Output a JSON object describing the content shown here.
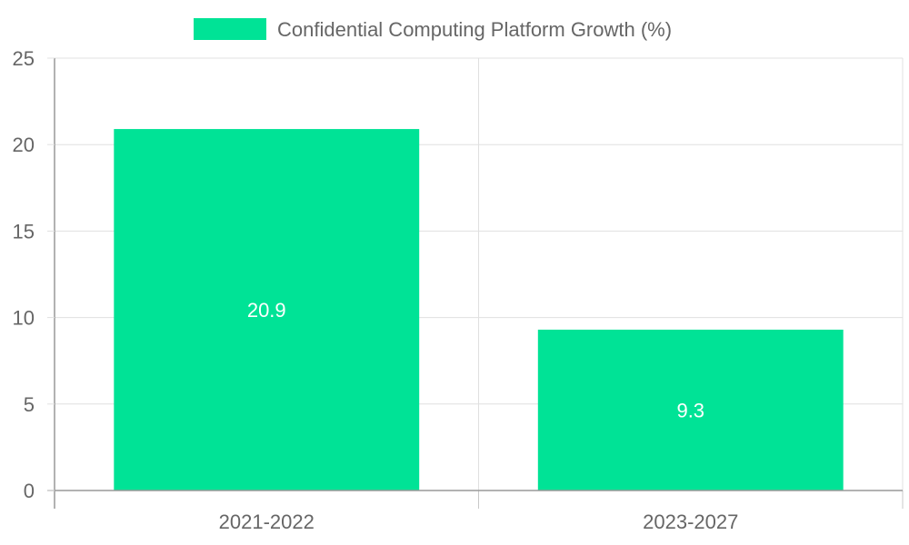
{
  "chart_data": {
    "type": "bar",
    "title": "",
    "legend": {
      "label": "Confidential Computing Platform Growth (%)",
      "color": "#00e396",
      "position": "top"
    },
    "categories": [
      "2021-2022",
      "2023-2027"
    ],
    "series": [
      {
        "name": "Confidential Computing Platform Growth (%)",
        "values": [
          20.9,
          9.3
        ]
      }
    ],
    "data_labels": [
      "20.9",
      "9.3"
    ],
    "xlabel": "",
    "ylabel": "",
    "ylim": [
      0,
      25
    ],
    "yticks": [
      0,
      5,
      10,
      15,
      20,
      25
    ],
    "grid": true,
    "bar_color": "#00e396"
  }
}
